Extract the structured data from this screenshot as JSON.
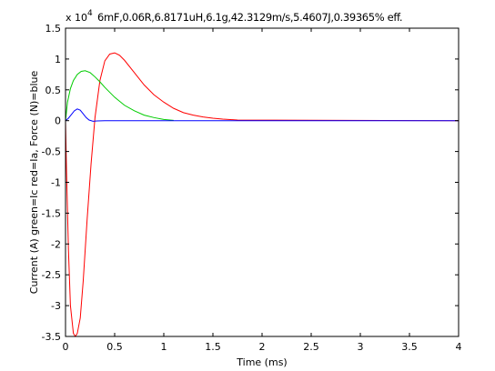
{
  "chart_data": {
    "type": "line",
    "title": "6mF,0.06R,6.8171uH,6.1g,42.3129m/s,5.4607J,0.39365% eff.",
    "xlabel": "Time (ms)",
    "ylabel": "Current (A) green=Ic red=Ia, Force (N)=blue",
    "y_multiplier": {
      "base": "x 10",
      "exponent": "4"
    },
    "xlim": [
      0,
      4
    ],
    "ylim": [
      -3.5,
      1.5
    ],
    "x_ticks": [
      0,
      0.5,
      1,
      1.5,
      2,
      2.5,
      3,
      3.5,
      4
    ],
    "x_tick_labels": [
      "0",
      "0.5",
      "1",
      "1.5",
      "2",
      "2.5",
      "3",
      "3.5",
      "4"
    ],
    "y_ticks": [
      -3.5,
      -3,
      -2.5,
      -2,
      -1.5,
      -1,
      -0.5,
      0,
      0.5,
      1,
      1.5
    ],
    "y_tick_labels": [
      "-3.5",
      "-3",
      "-2.5",
      "-2",
      "-1.5",
      "-1",
      "-0.5",
      "0",
      "0.5",
      "1",
      "1.5"
    ],
    "grid": false,
    "legend": "none",
    "series": [
      {
        "color": "#ff0000",
        "x": [
          0,
          0.01,
          0.03,
          0.05,
          0.08,
          0.1,
          0.12,
          0.15,
          0.18,
          0.22,
          0.26,
          0.3,
          0.35,
          0.4,
          0.45,
          0.5,
          0.55,
          0.6,
          0.7,
          0.8,
          0.9,
          1.0,
          1.1,
          1.2,
          1.3,
          1.4,
          1.5,
          1.6,
          1.7,
          1.75,
          4
        ],
        "y": [
          0,
          -0.8,
          -2.1,
          -3.0,
          -3.45,
          -3.5,
          -3.45,
          -3.2,
          -2.6,
          -1.6,
          -0.7,
          0.05,
          0.65,
          0.97,
          1.08,
          1.1,
          1.06,
          0.98,
          0.78,
          0.58,
          0.42,
          0.3,
          0.2,
          0.13,
          0.09,
          0.06,
          0.04,
          0.025,
          0.015,
          0.01,
          0.0
        ]
      },
      {
        "color": "#00cc00",
        "x": [
          0,
          0.02,
          0.05,
          0.08,
          0.12,
          0.16,
          0.2,
          0.25,
          0.3,
          0.35,
          0.4,
          0.5,
          0.6,
          0.7,
          0.8,
          0.9,
          1.0,
          1.1
        ],
        "y": [
          0,
          0.3,
          0.52,
          0.65,
          0.75,
          0.8,
          0.81,
          0.78,
          0.71,
          0.63,
          0.54,
          0.38,
          0.25,
          0.16,
          0.09,
          0.05,
          0.02,
          0.005
        ]
      },
      {
        "color": "#0000ff",
        "x": [
          0,
          0.03,
          0.06,
          0.09,
          0.12,
          0.15,
          0.18,
          0.21,
          0.24,
          0.28,
          0.32,
          0.4,
          0.5,
          1.0,
          4
        ],
        "y": [
          0,
          0.04,
          0.1,
          0.16,
          0.19,
          0.17,
          0.11,
          0.05,
          0.01,
          -0.01,
          -0.005,
          0.0,
          0.0,
          0.0,
          0.0
        ]
      }
    ]
  }
}
